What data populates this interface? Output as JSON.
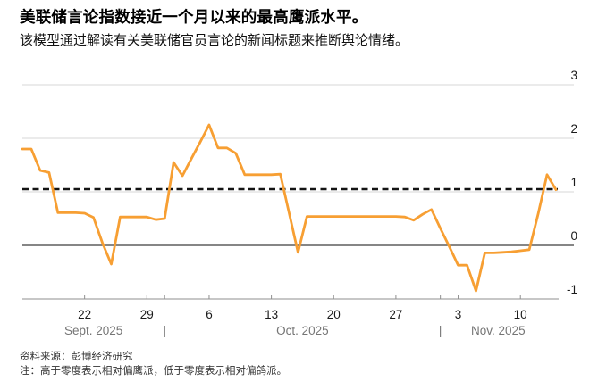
{
  "header": {
    "title": "美联储言论指数接近一个月以来的最高鹰派水平。",
    "subtitle": "该模型通过解读有关美联储官员言论的新闻标题来推断舆论情绪。"
  },
  "footer": {
    "source": "资料来源：彭博经济研究",
    "note": "注：高于零度表示相对偏鹰派，低于零度表示相对偏鸽派。"
  },
  "chart_data": {
    "type": "line",
    "title": "美联储言论指数",
    "frequency": "daily",
    "start_date": "2025-09-15",
    "end_date": "2025-11-14",
    "series": [
      {
        "name": "美联储言论指数",
        "color": "#F79F33",
        "values": [
          1.8,
          1.8,
          1.4,
          1.36,
          0.61,
          0.61,
          0.61,
          0.6,
          0.52,
          0.05,
          -0.35,
          0.53,
          0.53,
          0.53,
          0.53,
          0.48,
          0.5,
          1.55,
          1.3,
          1.62,
          1.93,
          2.25,
          1.82,
          1.82,
          1.72,
          1.32,
          1.32,
          1.32,
          1.32,
          1.33,
          0.6,
          -0.13,
          0.54,
          0.54,
          0.54,
          0.54,
          0.54,
          0.54,
          0.54,
          0.54,
          0.54,
          0.54,
          0.54,
          0.53,
          0.47,
          0.58,
          0.67,
          0.32,
          -0.02,
          -0.37,
          -0.37,
          -0.85,
          -0.14,
          -0.14,
          -0.13,
          -0.12,
          -0.1,
          -0.08,
          0.59,
          1.32,
          1.04
        ]
      }
    ],
    "reference_line": {
      "style": "dashed",
      "value": 1.05,
      "color": "#141414"
    },
    "y_axis": {
      "side": "right",
      "tick_labels": [
        "3",
        "2",
        "1",
        "0",
        "-1"
      ],
      "tick_values": [
        3,
        2,
        1,
        0,
        -1
      ],
      "ylim": [
        -1,
        3.2
      ],
      "zero_line": true
    },
    "x_axis": {
      "tick_labels": [
        {
          "label": "22",
          "day_index": 7
        },
        {
          "label": "29",
          "day_index": 14
        },
        {
          "label": "6",
          "day_index": 21
        },
        {
          "label": "13",
          "day_index": 28
        },
        {
          "label": "20",
          "day_index": 35
        },
        {
          "label": "27",
          "day_index": 42
        },
        {
          "label": "3",
          "day_index": 49
        },
        {
          "label": "10",
          "day_index": 56
        }
      ],
      "boundary_ticks": [
        16,
        47
      ],
      "month_labels": [
        "Sept. 2025",
        "Oct. 2025",
        "Nov. 2025"
      ],
      "separator_glyph": "|"
    },
    "grid": {
      "on": true,
      "line_color": "#d7d7d7",
      "zero_color": "#3f3f3f",
      "axis_color": "#8f8f8f"
    },
    "text_colors": {
      "axis_labels": "#1a1a1a",
      "month_labels": "#757575"
    },
    "legend": "none"
  }
}
